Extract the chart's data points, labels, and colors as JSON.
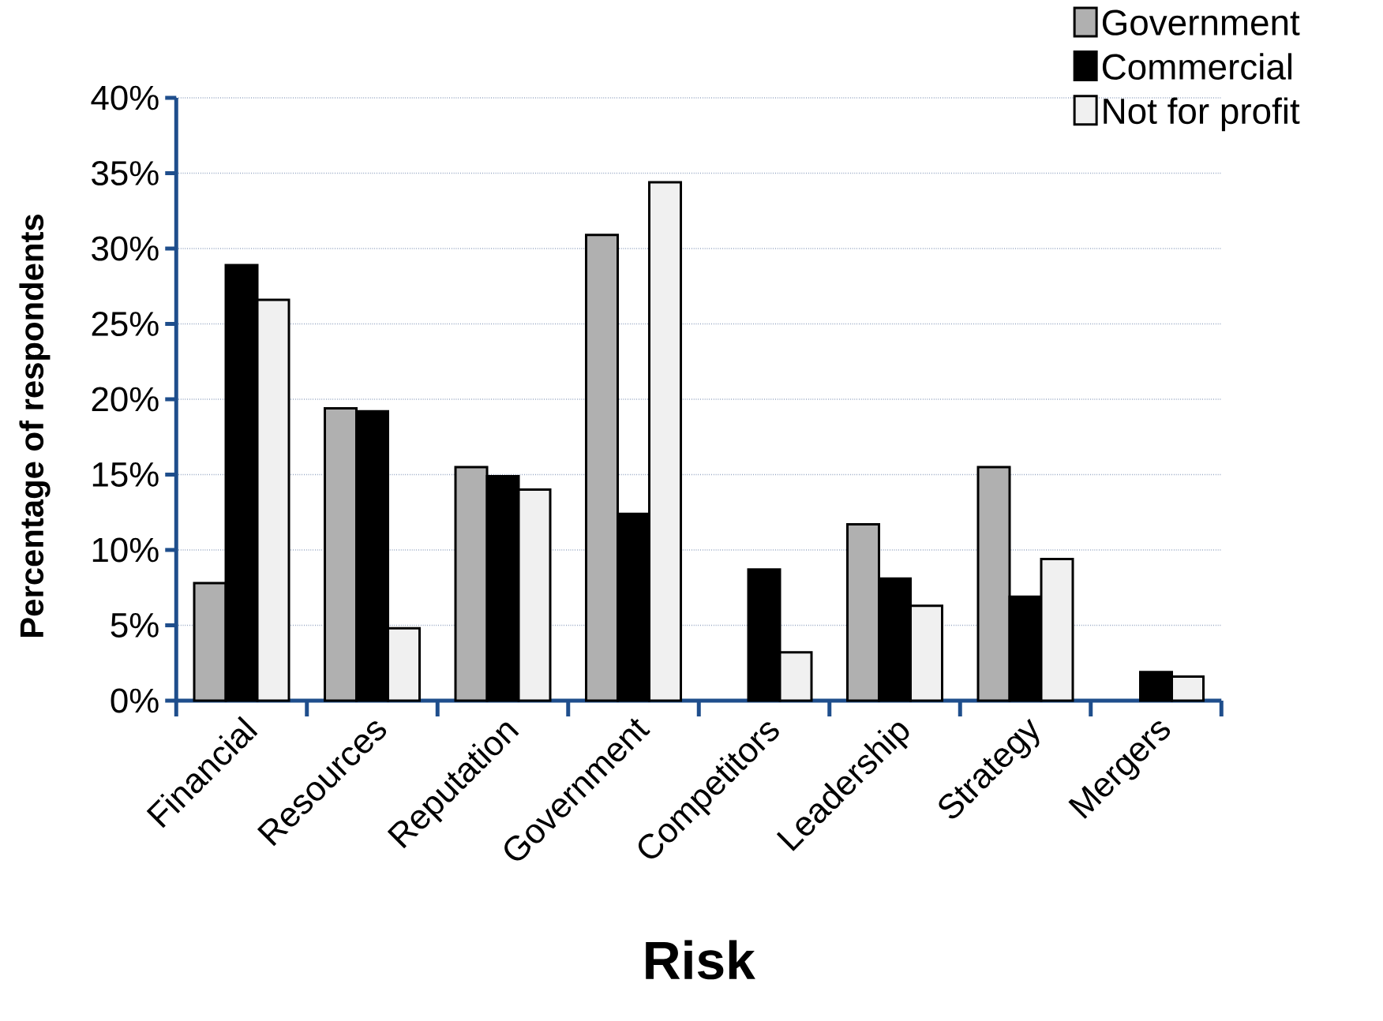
{
  "chart_data": {
    "type": "bar",
    "xlabel": "Risk",
    "ylabel": "Percentage of respondents",
    "categories": [
      "Financial",
      "Resources",
      "Reputation",
      "Government",
      "Competitors",
      "Leadership",
      "Strategy",
      "Mergers"
    ],
    "series": [
      {
        "name": "Government",
        "color": "#b0b0b0",
        "values": [
          7.8,
          19.4,
          15.5,
          30.9,
          null,
          11.7,
          15.5,
          null
        ]
      },
      {
        "name": "Commercial",
        "color": "#000000",
        "values": [
          28.9,
          19.2,
          14.9,
          12.4,
          8.7,
          8.1,
          6.9,
          1.9
        ]
      },
      {
        "name": "Not for profit",
        "color": "#f0f0f0",
        "values": [
          26.6,
          4.8,
          14.0,
          34.4,
          3.2,
          6.3,
          9.4,
          1.6
        ]
      }
    ],
    "ylim": [
      0,
      40
    ],
    "yticks": [
      {
        "value": 0,
        "label": "0%"
      },
      {
        "value": 5,
        "label": "5%"
      },
      {
        "value": 10,
        "label": "10%"
      },
      {
        "value": 15,
        "label": "15%"
      },
      {
        "value": 20,
        "label": "20%"
      },
      {
        "value": 25,
        "label": "25%"
      },
      {
        "value": 30,
        "label": "30%"
      },
      {
        "value": 35,
        "label": "35%"
      },
      {
        "value": 40,
        "label": "40%"
      }
    ],
    "grid": "y",
    "legend": "top right"
  }
}
